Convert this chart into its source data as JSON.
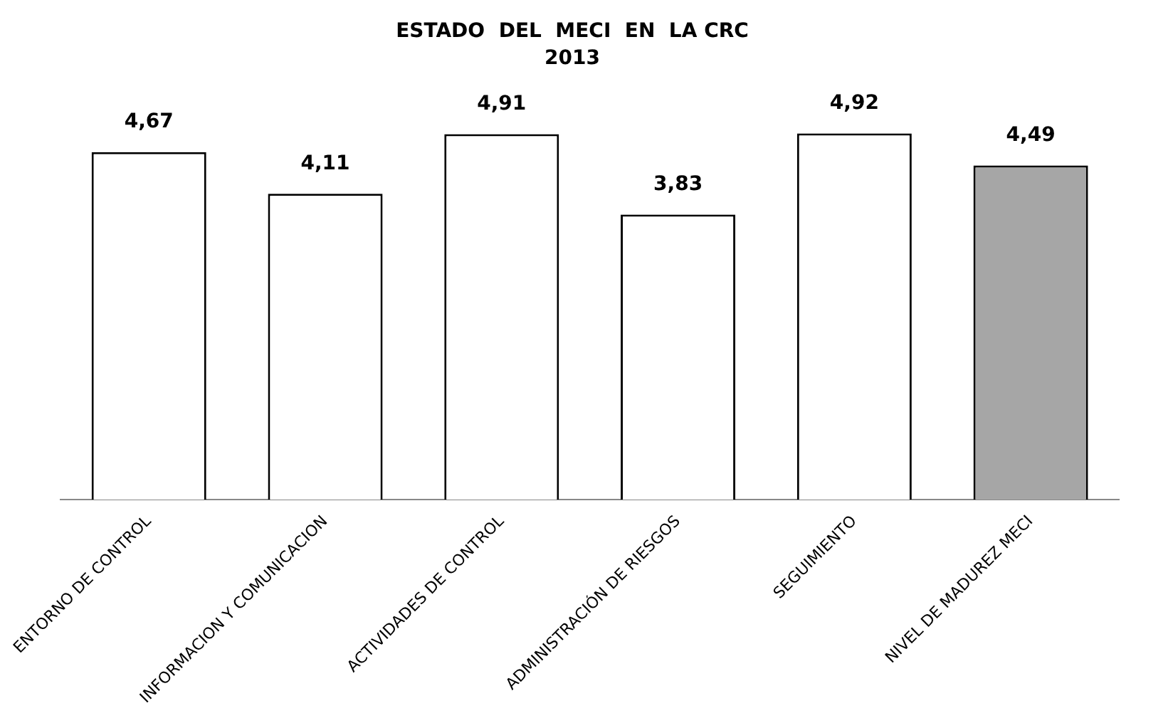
{
  "chart_data": {
    "type": "bar",
    "title": "ESTADO  DEL  MECI  EN  LA CRC",
    "subtitle": "2013",
    "categories": [
      "ENTORNO DE CONTROL",
      "INFORMACION Y COMUNICACION",
      "ACTIVIDADES DE CONTROL",
      "ADMINISTRACIÓN DE RIESGOS",
      "SEGUIMIENTO",
      "NIVEL DE MADUREZ MECI"
    ],
    "values": [
      4.67,
      4.11,
      4.91,
      3.83,
      4.92,
      4.49
    ],
    "colors": [
      "#ffffff",
      "#ffffff",
      "#ffffff",
      "#ffffff",
      "#ffffff",
      "#a6a6a6"
    ],
    "value_labels": [
      "4,67",
      "4,11",
      "4,91",
      "3,83",
      "4,92",
      "4,49"
    ],
    "grid": false,
    "legend": false
  }
}
